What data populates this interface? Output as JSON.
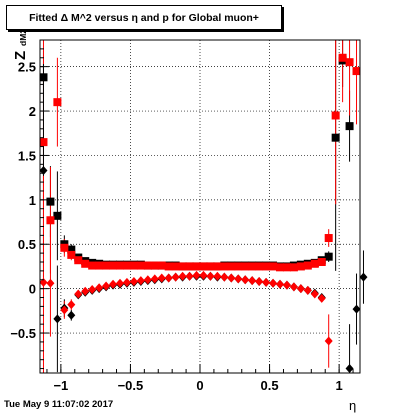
{
  "title": "Fitted Δ M^2 versus η and p for Global muon+",
  "timestamp": "Tue May  9 11:07:02 2017",
  "chart_data": {
    "type": "scatter",
    "title": "Fitted Δ M^2 versus η and p for Global muon+",
    "xlabel": "η",
    "ylabel_main": "Z",
    "ylabel_sub": "dM2",
    "xlim": [
      -1.15,
      1.15
    ],
    "ylim": [
      -0.95,
      2.8
    ],
    "grid": true,
    "xticks": [
      -1,
      -0.5,
      0,
      0.5,
      1
    ],
    "xtick_labels": [
      "−1",
      "−0.5",
      "0",
      "0.5",
      "1"
    ],
    "yticks": [
      -0.5,
      0,
      0.5,
      1,
      1.5,
      2,
      2.5
    ],
    "ytick_labels": [
      "−0.5",
      "0",
      "0.5",
      "1",
      "1.5",
      "2",
      "2.5"
    ],
    "colors": {
      "black": "#000000",
      "red": "#ff0000"
    },
    "series": [
      {
        "marker": "square",
        "color": "#000000",
        "points": [
          {
            "x": -1.125,
            "y": 2.38,
            "err": 0.3
          },
          {
            "x": -1.075,
            "y": 0.98,
            "err": 0.4
          },
          {
            "x": -1.025,
            "y": 0.82,
            "err": 0.5
          },
          {
            "x": -0.975,
            "y": 0.5,
            "err": 0.1
          },
          {
            "x": -0.925,
            "y": 0.44,
            "err": 0.06
          },
          {
            "x": -0.875,
            "y": 0.35,
            "err": 0.04
          },
          {
            "x": -0.825,
            "y": 0.31,
            "err": 0.03
          },
          {
            "x": -0.775,
            "y": 0.29,
            "err": 0.02
          },
          {
            "x": -0.725,
            "y": 0.28,
            "err": 0.02
          },
          {
            "x": -0.675,
            "y": 0.27,
            "err": 0.02
          },
          {
            "x": -0.625,
            "y": 0.27,
            "err": 0.02
          },
          {
            "x": -0.575,
            "y": 0.27,
            "err": 0.02
          },
          {
            "x": -0.525,
            "y": 0.27,
            "err": 0.02
          },
          {
            "x": -0.475,
            "y": 0.27,
            "err": 0.02
          },
          {
            "x": -0.425,
            "y": 0.27,
            "err": 0.02
          },
          {
            "x": -0.375,
            "y": 0.26,
            "err": 0.02
          },
          {
            "x": -0.325,
            "y": 0.26,
            "err": 0.02
          },
          {
            "x": -0.275,
            "y": 0.26,
            "err": 0.02
          },
          {
            "x": -0.225,
            "y": 0.26,
            "err": 0.02
          },
          {
            "x": -0.175,
            "y": 0.26,
            "err": 0.02
          },
          {
            "x": -0.125,
            "y": 0.25,
            "err": 0.02
          },
          {
            "x": -0.075,
            "y": 0.25,
            "err": 0.02
          },
          {
            "x": -0.025,
            "y": 0.25,
            "err": 0.02
          },
          {
            "x": 0.025,
            "y": 0.25,
            "err": 0.02
          },
          {
            "x": 0.075,
            "y": 0.25,
            "err": 0.02
          },
          {
            "x": 0.125,
            "y": 0.25,
            "err": 0.02
          },
          {
            "x": 0.175,
            "y": 0.26,
            "err": 0.02
          },
          {
            "x": 0.225,
            "y": 0.26,
            "err": 0.02
          },
          {
            "x": 0.275,
            "y": 0.26,
            "err": 0.02
          },
          {
            "x": 0.325,
            "y": 0.26,
            "err": 0.02
          },
          {
            "x": 0.375,
            "y": 0.26,
            "err": 0.02
          },
          {
            "x": 0.425,
            "y": 0.26,
            "err": 0.02
          },
          {
            "x": 0.475,
            "y": 0.26,
            "err": 0.02
          },
          {
            "x": 0.525,
            "y": 0.26,
            "err": 0.02
          },
          {
            "x": 0.575,
            "y": 0.25,
            "err": 0.02
          },
          {
            "x": 0.625,
            "y": 0.25,
            "err": 0.02
          },
          {
            "x": 0.675,
            "y": 0.26,
            "err": 0.02
          },
          {
            "x": 0.725,
            "y": 0.27,
            "err": 0.02
          },
          {
            "x": 0.775,
            "y": 0.28,
            "err": 0.02
          },
          {
            "x": 0.825,
            "y": 0.29,
            "err": 0.03
          },
          {
            "x": 0.875,
            "y": 0.32,
            "err": 0.04
          },
          {
            "x": 0.925,
            "y": 0.36,
            "err": 0.06
          },
          {
            "x": 0.975,
            "y": 1.7,
            "err": 1.5
          },
          {
            "x": 1.075,
            "y": 1.83,
            "err": 0.4
          },
          {
            "x": 1.025,
            "y": 2.57,
            "err": 0.3
          }
        ]
      },
      {
        "marker": "square",
        "color": "#ff0000",
        "points": [
          {
            "x": -1.125,
            "y": 1.65,
            "err": 1.2
          },
          {
            "x": -1.075,
            "y": 0.77,
            "err": 0.6
          },
          {
            "x": -1.025,
            "y": 2.1,
            "err": 0.5
          },
          {
            "x": -0.975,
            "y": 0.46,
            "err": 0.1
          },
          {
            "x": -0.925,
            "y": 0.38,
            "err": 0.06
          },
          {
            "x": -0.875,
            "y": 0.32,
            "err": 0.04
          },
          {
            "x": -0.825,
            "y": 0.28,
            "err": 0.03
          },
          {
            "x": -0.775,
            "y": 0.26,
            "err": 0.02
          },
          {
            "x": -0.725,
            "y": 0.26,
            "err": 0.02
          },
          {
            "x": -0.675,
            "y": 0.26,
            "err": 0.02
          },
          {
            "x": -0.625,
            "y": 0.26,
            "err": 0.02
          },
          {
            "x": -0.575,
            "y": 0.26,
            "err": 0.02
          },
          {
            "x": -0.525,
            "y": 0.26,
            "err": 0.02
          },
          {
            "x": -0.475,
            "y": 0.26,
            "err": 0.02
          },
          {
            "x": -0.425,
            "y": 0.26,
            "err": 0.02
          },
          {
            "x": -0.375,
            "y": 0.26,
            "err": 0.02
          },
          {
            "x": -0.325,
            "y": 0.26,
            "err": 0.02
          },
          {
            "x": -0.275,
            "y": 0.26,
            "err": 0.02
          },
          {
            "x": -0.225,
            "y": 0.25,
            "err": 0.02
          },
          {
            "x": -0.175,
            "y": 0.25,
            "err": 0.02
          },
          {
            "x": -0.125,
            "y": 0.25,
            "err": 0.02
          },
          {
            "x": -0.075,
            "y": 0.25,
            "err": 0.02
          },
          {
            "x": -0.025,
            "y": 0.25,
            "err": 0.02
          },
          {
            "x": 0.025,
            "y": 0.25,
            "err": 0.02
          },
          {
            "x": 0.075,
            "y": 0.25,
            "err": 0.02
          },
          {
            "x": 0.125,
            "y": 0.25,
            "err": 0.02
          },
          {
            "x": 0.175,
            "y": 0.25,
            "err": 0.02
          },
          {
            "x": 0.225,
            "y": 0.25,
            "err": 0.02
          },
          {
            "x": 0.275,
            "y": 0.25,
            "err": 0.02
          },
          {
            "x": 0.325,
            "y": 0.25,
            "err": 0.02
          },
          {
            "x": 0.375,
            "y": 0.25,
            "err": 0.02
          },
          {
            "x": 0.425,
            "y": 0.25,
            "err": 0.02
          },
          {
            "x": 0.475,
            "y": 0.25,
            "err": 0.02
          },
          {
            "x": 0.525,
            "y": 0.25,
            "err": 0.02
          },
          {
            "x": 0.575,
            "y": 0.24,
            "err": 0.02
          },
          {
            "x": 0.625,
            "y": 0.24,
            "err": 0.02
          },
          {
            "x": 0.675,
            "y": 0.24,
            "err": 0.02
          },
          {
            "x": 0.725,
            "y": 0.25,
            "err": 0.02
          },
          {
            "x": 0.775,
            "y": 0.26,
            "err": 0.02
          },
          {
            "x": 0.825,
            "y": 0.28,
            "err": 0.03
          },
          {
            "x": 0.875,
            "y": 0.3,
            "err": 0.04
          },
          {
            "x": 0.925,
            "y": 0.57,
            "err": 0.1
          },
          {
            "x": 0.975,
            "y": 1.95,
            "err": 1.0
          },
          {
            "x": 1.025,
            "y": 2.6,
            "err": 0.5
          },
          {
            "x": 1.075,
            "y": 2.55,
            "err": 0.6
          },
          {
            "x": 1.125,
            "y": 2.45,
            "err": 0.6
          }
        ]
      },
      {
        "marker": "diamond",
        "color": "#000000",
        "points": [
          {
            "x": -1.125,
            "y": 1.33,
            "err": 1.2
          },
          {
            "x": -1.025,
            "y": -0.34,
            "err": 0.6
          },
          {
            "x": -0.975,
            "y": -0.22,
            "err": 0.1
          },
          {
            "x": -0.925,
            "y": -0.3,
            "err": 0.06
          },
          {
            "x": -0.875,
            "y": -0.07,
            "err": 0.04
          },
          {
            "x": -0.825,
            "y": -0.04,
            "err": 0.03
          },
          {
            "x": -0.775,
            "y": -0.02,
            "err": 0.02
          },
          {
            "x": -0.725,
            "y": 0.0,
            "err": 0.02
          },
          {
            "x": -0.675,
            "y": 0.02,
            "err": 0.02
          },
          {
            "x": -0.625,
            "y": 0.04,
            "err": 0.02
          },
          {
            "x": -0.575,
            "y": 0.05,
            "err": 0.02
          },
          {
            "x": -0.525,
            "y": 0.06,
            "err": 0.02
          },
          {
            "x": -0.475,
            "y": 0.07,
            "err": 0.02
          },
          {
            "x": -0.425,
            "y": 0.08,
            "err": 0.02
          },
          {
            "x": -0.375,
            "y": 0.09,
            "err": 0.02
          },
          {
            "x": -0.325,
            "y": 0.1,
            "err": 0.02
          },
          {
            "x": -0.275,
            "y": 0.11,
            "err": 0.02
          },
          {
            "x": -0.225,
            "y": 0.12,
            "err": 0.02
          },
          {
            "x": -0.175,
            "y": 0.13,
            "err": 0.02
          },
          {
            "x": -0.125,
            "y": 0.13,
            "err": 0.02
          },
          {
            "x": -0.075,
            "y": 0.14,
            "err": 0.02
          },
          {
            "x": -0.025,
            "y": 0.14,
            "err": 0.02
          },
          {
            "x": 0.025,
            "y": 0.14,
            "err": 0.02
          },
          {
            "x": 0.075,
            "y": 0.14,
            "err": 0.02
          },
          {
            "x": 0.125,
            "y": 0.13,
            "err": 0.02
          },
          {
            "x": 0.175,
            "y": 0.13,
            "err": 0.02
          },
          {
            "x": 0.225,
            "y": 0.12,
            "err": 0.02
          },
          {
            "x": 0.275,
            "y": 0.11,
            "err": 0.02
          },
          {
            "x": 0.325,
            "y": 0.1,
            "err": 0.02
          },
          {
            "x": 0.375,
            "y": 0.09,
            "err": 0.02
          },
          {
            "x": 0.425,
            "y": 0.08,
            "err": 0.02
          },
          {
            "x": 0.475,
            "y": 0.07,
            "err": 0.02
          },
          {
            "x": 0.525,
            "y": 0.06,
            "err": 0.02
          },
          {
            "x": 0.575,
            "y": 0.05,
            "err": 0.02
          },
          {
            "x": 0.625,
            "y": 0.04,
            "err": 0.02
          },
          {
            "x": 0.675,
            "y": 0.02,
            "err": 0.02
          },
          {
            "x": 0.725,
            "y": 0.0,
            "err": 0.02
          },
          {
            "x": 0.775,
            "y": -0.02,
            "err": 0.02
          },
          {
            "x": 0.825,
            "y": -0.05,
            "err": 0.03
          },
          {
            "x": 0.875,
            "y": -0.1,
            "err": 0.04
          },
          {
            "x": 1.075,
            "y": -0.9,
            "err": 0.5
          },
          {
            "x": 1.125,
            "y": -0.23,
            "err": 0.4
          },
          {
            "x": 1.175,
            "y": 0.13,
            "err": 0.3
          }
        ]
      },
      {
        "marker": "diamond",
        "color": "#ff0000",
        "points": [
          {
            "x": -1.125,
            "y": 0.07,
            "err": 1.2
          },
          {
            "x": -1.075,
            "y": 0.06,
            "err": 0.6
          },
          {
            "x": -0.975,
            "y": -0.24,
            "err": 0.1
          },
          {
            "x": -0.925,
            "y": -0.18,
            "err": 0.06
          },
          {
            "x": -0.875,
            "y": -0.06,
            "err": 0.04
          },
          {
            "x": -0.825,
            "y": -0.03,
            "err": 0.03
          },
          {
            "x": -0.775,
            "y": -0.01,
            "err": 0.02
          },
          {
            "x": -0.725,
            "y": 0.01,
            "err": 0.02
          },
          {
            "x": -0.675,
            "y": 0.03,
            "err": 0.02
          },
          {
            "x": -0.625,
            "y": 0.05,
            "err": 0.02
          },
          {
            "x": -0.575,
            "y": 0.06,
            "err": 0.02
          },
          {
            "x": -0.525,
            "y": 0.07,
            "err": 0.02
          },
          {
            "x": -0.475,
            "y": 0.08,
            "err": 0.02
          },
          {
            "x": -0.425,
            "y": 0.09,
            "err": 0.02
          },
          {
            "x": -0.375,
            "y": 0.1,
            "err": 0.02
          },
          {
            "x": -0.325,
            "y": 0.11,
            "err": 0.02
          },
          {
            "x": -0.275,
            "y": 0.12,
            "err": 0.02
          },
          {
            "x": -0.225,
            "y": 0.12,
            "err": 0.02
          },
          {
            "x": -0.175,
            "y": 0.13,
            "err": 0.02
          },
          {
            "x": -0.125,
            "y": 0.14,
            "err": 0.02
          },
          {
            "x": -0.075,
            "y": 0.14,
            "err": 0.02
          },
          {
            "x": -0.025,
            "y": 0.15,
            "err": 0.02
          },
          {
            "x": 0.025,
            "y": 0.15,
            "err": 0.02
          },
          {
            "x": 0.075,
            "y": 0.14,
            "err": 0.02
          },
          {
            "x": 0.125,
            "y": 0.14,
            "err": 0.02
          },
          {
            "x": 0.175,
            "y": 0.13,
            "err": 0.02
          },
          {
            "x": 0.225,
            "y": 0.12,
            "err": 0.02
          },
          {
            "x": 0.275,
            "y": 0.11,
            "err": 0.02
          },
          {
            "x": 0.325,
            "y": 0.1,
            "err": 0.02
          },
          {
            "x": 0.375,
            "y": 0.09,
            "err": 0.02
          },
          {
            "x": 0.425,
            "y": 0.08,
            "err": 0.02
          },
          {
            "x": 0.475,
            "y": 0.07,
            "err": 0.02
          },
          {
            "x": 0.525,
            "y": 0.06,
            "err": 0.02
          },
          {
            "x": 0.575,
            "y": 0.05,
            "err": 0.02
          },
          {
            "x": 0.625,
            "y": 0.04,
            "err": 0.02
          },
          {
            "x": 0.675,
            "y": 0.02,
            "err": 0.02
          },
          {
            "x": 0.725,
            "y": 0.0,
            "err": 0.02
          },
          {
            "x": 0.775,
            "y": -0.02,
            "err": 0.02
          },
          {
            "x": 0.825,
            "y": -0.06,
            "err": 0.03
          },
          {
            "x": 0.875,
            "y": -0.11,
            "err": 0.04
          },
          {
            "x": 0.925,
            "y": -0.59,
            "err": 0.3
          }
        ]
      }
    ]
  }
}
